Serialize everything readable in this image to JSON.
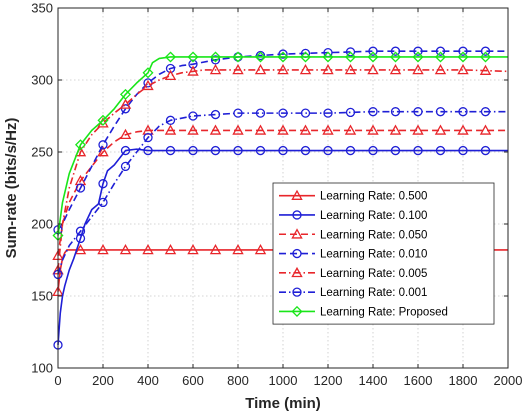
{
  "chart_data": {
    "type": "line",
    "title": "",
    "xlabel": "Time (min)",
    "ylabel": "Sum-rate (bits/s/Hz)",
    "xlim": [
      0,
      2000
    ],
    "ylim": [
      100,
      350
    ],
    "xticks": [
      0,
      200,
      400,
      600,
      800,
      1000,
      1200,
      1400,
      1600,
      1800,
      2000
    ],
    "yticks": [
      100,
      150,
      200,
      250,
      300,
      350
    ],
    "grid": true,
    "legend_position": "lower-right",
    "series": [
      {
        "name": "Learning Rate: 0.500",
        "color": "#e8262b",
        "line_style": "solid",
        "marker": "triangle",
        "x": [
          0,
          10,
          20,
          30,
          40,
          50,
          70,
          100,
          150,
          200,
          300,
          400,
          500,
          600,
          700,
          800,
          900,
          1000,
          1100,
          1200,
          1300,
          1400,
          1500,
          1600,
          1700,
          1800,
          1900,
          2000
        ],
        "y": [
          153,
          168,
          176,
          180,
          182,
          182,
          182,
          182,
          182,
          182,
          182,
          182,
          182,
          182,
          182,
          182,
          182,
          182,
          182,
          182,
          182,
          182,
          182,
          182,
          182,
          182,
          182,
          182
        ],
        "marker_x": [
          0,
          100,
          200,
          300,
          400,
          500,
          600,
          700,
          800,
          900,
          1000,
          1100,
          1200,
          1300,
          1400,
          1500,
          1600,
          1700,
          1800,
          1900
        ]
      },
      {
        "name": "Learning Rate: 0.100",
        "color": "#1f1fd6",
        "line_style": "solid",
        "marker": "circle",
        "x": [
          0,
          10,
          20,
          30,
          50,
          70,
          100,
          120,
          150,
          180,
          200,
          220,
          250,
          270,
          300,
          350,
          400,
          450,
          500,
          600,
          700,
          800,
          900,
          1000,
          1200,
          1400,
          1600,
          1800,
          2000
        ],
        "y": [
          116,
          138,
          150,
          157,
          168,
          176,
          190,
          200,
          210,
          214,
          228,
          237,
          241,
          245,
          251,
          252,
          251,
          251,
          251,
          251,
          251,
          251,
          251,
          251,
          251,
          251,
          251,
          251,
          251
        ],
        "marker_x": [
          0,
          100,
          200,
          300,
          400,
          500,
          600,
          700,
          800,
          900,
          1000,
          1100,
          1200,
          1300,
          1400,
          1500,
          1600,
          1700,
          1800,
          1900
        ]
      },
      {
        "name": "Learning Rate: 0.050",
        "color": "#e8262b",
        "line_style": "dashed",
        "marker": "triangle",
        "x": [
          0,
          20,
          50,
          100,
          150,
          200,
          250,
          300,
          350,
          400,
          450,
          500,
          600,
          700,
          800,
          1000,
          1200,
          1400,
          1600,
          1800,
          2000
        ],
        "y": [
          178,
          200,
          215,
          230,
          240,
          250,
          257,
          262,
          264,
          265,
          265,
          265,
          265,
          265,
          265,
          265,
          265,
          265,
          265,
          265,
          265
        ],
        "marker_x": [
          0,
          100,
          200,
          300,
          400,
          500,
          600,
          700,
          800,
          900,
          1000,
          1100,
          1200,
          1300,
          1400,
          1500,
          1600,
          1700,
          1800,
          1900
        ]
      },
      {
        "name": "Learning Rate: 0.010",
        "color": "#1f1fd6",
        "line_style": "dashed",
        "marker": "circle",
        "x": [
          0,
          20,
          50,
          100,
          150,
          200,
          250,
          300,
          350,
          400,
          450,
          500,
          550,
          600,
          700,
          800,
          1000,
          1200,
          1400,
          1600,
          1800,
          2000
        ],
        "y": [
          196,
          200,
          210,
          225,
          240,
          255,
          268,
          280,
          290,
          298,
          304,
          308,
          310,
          311,
          314,
          316,
          318,
          319,
          320,
          320,
          320,
          320
        ],
        "marker_x": [
          0,
          100,
          200,
          300,
          400,
          500,
          600,
          700,
          800,
          900,
          1000,
          1100,
          1200,
          1300,
          1400,
          1500,
          1600,
          1700,
          1800,
          1900
        ]
      },
      {
        "name": "Learning Rate: 0.005",
        "color": "#e8262b",
        "line_style": "dashdot",
        "marker": "triangle",
        "x": [
          0,
          20,
          50,
          100,
          150,
          200,
          250,
          300,
          350,
          400,
          450,
          500,
          550,
          600,
          650,
          700,
          800,
          1000,
          1200,
          1400,
          1600,
          1800,
          2000
        ],
        "y": [
          168,
          200,
          225,
          250,
          262,
          270,
          277,
          283,
          290,
          296,
          300,
          303,
          305,
          306,
          307,
          307,
          307,
          307,
          307,
          307,
          307,
          307,
          306
        ],
        "marker_x": [
          0,
          100,
          200,
          300,
          400,
          500,
          600,
          700,
          800,
          900,
          1000,
          1100,
          1200,
          1300,
          1400,
          1500,
          1600,
          1700,
          1800,
          1900
        ]
      },
      {
        "name": "Learning Rate: 0.001",
        "color": "#1f1fd6",
        "line_style": "dashdot",
        "marker": "circle",
        "x": [
          0,
          20,
          50,
          100,
          150,
          200,
          250,
          300,
          350,
          400,
          450,
          500,
          600,
          700,
          800,
          1000,
          1200,
          1400,
          1600,
          1800,
          2000
        ],
        "y": [
          165,
          175,
          185,
          195,
          205,
          215,
          228,
          240,
          250,
          260,
          268,
          272,
          275,
          276,
          277,
          277,
          277,
          278,
          278,
          278,
          278
        ],
        "marker_x": [
          0,
          100,
          200,
          300,
          400,
          500,
          600,
          700,
          800,
          900,
          1000,
          1100,
          1200,
          1300,
          1400,
          1500,
          1600,
          1700,
          1800,
          1900
        ]
      },
      {
        "name": "Learning Rate: Proposed",
        "color": "#19e619",
        "line_style": "solid",
        "marker": "diamond",
        "x": [
          0,
          20,
          50,
          100,
          150,
          200,
          250,
          300,
          350,
          400,
          420,
          450,
          500,
          600,
          700,
          800,
          1000,
          1200,
          1400,
          1600,
          1800,
          2000
        ],
        "y": [
          192,
          215,
          235,
          255,
          265,
          272,
          280,
          290,
          298,
          305,
          312,
          315,
          316,
          316,
          316,
          316,
          316,
          316,
          316,
          316,
          316,
          316
        ],
        "marker_x": [
          0,
          100,
          200,
          300,
          400,
          500,
          600,
          700,
          800,
          900,
          1000,
          1100,
          1200,
          1300,
          1400,
          1500,
          1600,
          1700,
          1800,
          1900
        ]
      }
    ]
  }
}
